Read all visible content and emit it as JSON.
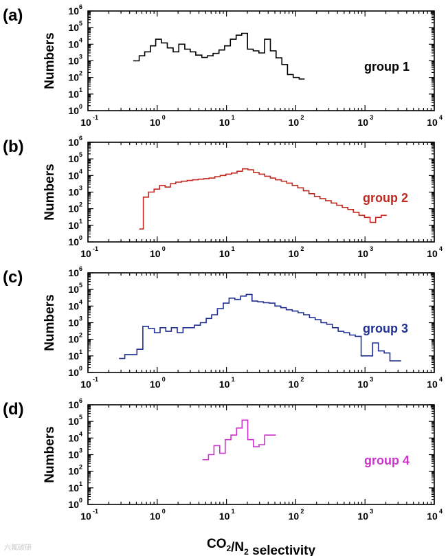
{
  "chart_data": [
    {
      "type": "line",
      "step": true,
      "panel_letter": "(a)",
      "label": "group 1",
      "color": "#000000",
      "ylabel": "Numbers",
      "xlim_exp": [
        -1,
        4
      ],
      "ylim_exp": [
        0,
        6
      ],
      "x": [
        0.45,
        0.55,
        0.66,
        0.8,
        0.95,
        1.15,
        1.4,
        1.7,
        2.05,
        2.5,
        3.0,
        3.6,
        4.4,
        5.3,
        6.4,
        7.8,
        9.4,
        11.4,
        13.8,
        16.6,
        20.1,
        24.3,
        29.4,
        35.5,
        43,
        52,
        63,
        76,
        92,
        112
      ],
      "values": [
        1000,
        2000,
        3500,
        8000,
        20000,
        12000,
        6000,
        3500,
        10000,
        5000,
        3500,
        2200,
        1600,
        2000,
        2800,
        4500,
        8000,
        20000,
        35000,
        45000,
        5000,
        4000,
        3000,
        20000,
        4000,
        1500,
        600,
        150,
        100,
        80
      ]
    },
    {
      "type": "line",
      "step": true,
      "panel_letter": "(b)",
      "label": "group 2",
      "color": "#c0281f",
      "ylabel": "Numbers",
      "xlim_exp": [
        -1,
        4
      ],
      "ylim_exp": [
        0,
        6
      ],
      "x": [
        0.55,
        0.63,
        0.75,
        0.9,
        1.08,
        1.3,
        1.55,
        1.85,
        2.25,
        2.7,
        3.25,
        3.9,
        4.7,
        5.6,
        6.8,
        8.1,
        9.8,
        11.8,
        14.2,
        17.0,
        20.5,
        24.6,
        29.6,
        35.6,
        43,
        51,
        62,
        74,
        89,
        107,
        129,
        155,
        186,
        224,
        270,
        325,
        390,
        470,
        565,
        680,
        820,
        985,
        1185,
        1425,
        1715
      ],
      "values": [
        6,
        500,
        1000,
        1500,
        2500,
        2000,
        3200,
        4000,
        4500,
        5000,
        5500,
        6000,
        6500,
        7000,
        8500,
        10000,
        12000,
        14000,
        18000,
        25000,
        22000,
        15000,
        12000,
        9000,
        7000,
        5500,
        4500,
        3500,
        2500,
        1800,
        1200,
        800,
        550,
        400,
        300,
        220,
        160,
        120,
        90,
        60,
        40,
        30,
        15,
        30,
        40
      ]
    },
    {
      "type": "line",
      "step": true,
      "panel_letter": "(c)",
      "label": "group 3",
      "color": "#1f2f93",
      "ylabel": "Numbers",
      "xlim_exp": [
        -1,
        4
      ],
      "ylim_exp": [
        0,
        6
      ],
      "x": [
        0.28,
        0.34,
        0.42,
        0.51,
        0.62,
        0.75,
        0.91,
        1.1,
        1.33,
        1.6,
        1.95,
        2.36,
        2.85,
        3.45,
        4.2,
        5.1,
        6.1,
        7.4,
        9.0,
        10.9,
        13.2,
        16.0,
        19.3,
        23.4,
        28.3,
        34.2,
        41.5,
        50,
        61,
        73,
        89,
        108,
        130,
        158,
        191,
        231,
        280,
        338,
        410,
        495,
        600,
        725,
        880,
        1065,
        1290,
        1560,
        1890,
        2290,
        2770
      ],
      "values": [
        7,
        12,
        12,
        25,
        600,
        450,
        250,
        500,
        300,
        500,
        250,
        500,
        500,
        700,
        1000,
        1800,
        3000,
        7000,
        15000,
        30000,
        25000,
        40000,
        50000,
        20000,
        18000,
        16000,
        15000,
        10000,
        8000,
        6000,
        5000,
        4000,
        3000,
        2000,
        1500,
        1000,
        800,
        500,
        300,
        250,
        180,
        150,
        10,
        10,
        60,
        20,
        15,
        5,
        5
      ]
    },
    {
      "type": "line",
      "step": true,
      "panel_letter": "(d)",
      "label": "group 4",
      "color": "#cc33cc",
      "ylabel": "Numbers",
      "xlabel": "CO2/N2 selectivity",
      "xlim_exp": [
        -1,
        4
      ],
      "ylim_exp": [
        0,
        6
      ],
      "x": [
        4.5,
        5.5,
        6.6,
        8.0,
        9.6,
        11.6,
        14.0,
        16.8,
        20.3,
        24.5,
        29.5,
        35.6,
        43
      ],
      "values": [
        500,
        1000,
        3500,
        1200,
        8000,
        15000,
        40000,
        120000,
        8000,
        3000,
        4000,
        15000,
        15000
      ]
    }
  ],
  "axes": {
    "xtick_base": "10",
    "xtick_exponents": [
      "-1",
      "0",
      "1",
      "2",
      "3",
      "4"
    ],
    "ytick_base": "10",
    "ytick_exponents": [
      "0",
      "1",
      "2",
      "3",
      "4",
      "5",
      "6"
    ]
  },
  "xlabel": {
    "main": "CO",
    "sub1": "2",
    "mid": "/N",
    "sub2": "2",
    "tail": " selectivity"
  },
  "watermark": "六氟碳研"
}
